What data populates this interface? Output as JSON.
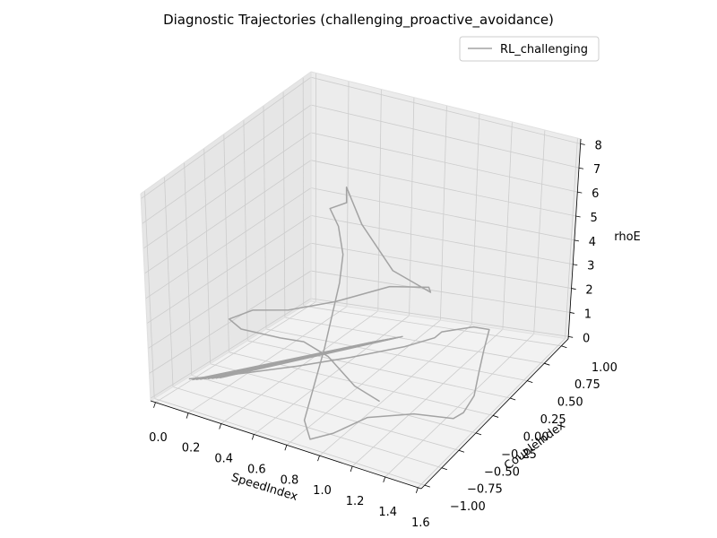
{
  "chart_data": {
    "type": "line3d",
    "title": "Diagnostic Trajectories (challenging_proactive_avoidance)",
    "xlabel": "SpeedIndex",
    "ylabel": "CoupleIndex",
    "zlabel": "rhoE",
    "xlim": [
      -0.03,
      1.62
    ],
    "ylim": [
      -1.05,
      1.1
    ],
    "zlim": [
      -0.1,
      8.2
    ],
    "xticks": [
      "0.0",
      "0.2",
      "0.4",
      "0.6",
      "0.8",
      "1.0",
      "1.2",
      "1.4",
      "1.6"
    ],
    "yticks": [
      "−1.00",
      "−0.75",
      "−0.50",
      "−0.25",
      "0.00",
      "0.25",
      "0.50",
      "0.75",
      "1.00"
    ],
    "zticks": [
      "0",
      "1",
      "2",
      "3",
      "4",
      "5",
      "6",
      "7",
      "8"
    ],
    "grid": true,
    "legend": {
      "position": "top-right",
      "entries": [
        "RL_challenging"
      ]
    },
    "series": [
      {
        "name": "RL_challenging",
        "color": "#a3a3a3",
        "points": [
          [
            0.0,
            -0.6,
            0.0
          ],
          [
            0.2,
            -0.3,
            0.0
          ],
          [
            0.4,
            0.0,
            0.0
          ],
          [
            0.6,
            0.3,
            0.0
          ],
          [
            0.8,
            0.6,
            0.0
          ],
          [
            0.9,
            0.8,
            0.0
          ],
          [
            0.9,
            0.9,
            0.0
          ],
          [
            1.0,
            0.95,
            0.1
          ],
          [
            1.1,
            0.9,
            0.4
          ],
          [
            1.2,
            0.9,
            0.4
          ],
          [
            1.3,
            0.6,
            0.5
          ],
          [
            1.4,
            0.3,
            0.5
          ],
          [
            1.5,
            0.0,
            0.5
          ],
          [
            1.52,
            -0.2,
            0.4
          ],
          [
            1.5,
            -0.3,
            0.4
          ],
          [
            1.3,
            -0.4,
            0.5
          ],
          [
            1.1,
            -0.6,
            0.5
          ],
          [
            1.0,
            -0.85,
            0.3
          ],
          [
            0.9,
            -0.95,
            0.1
          ],
          [
            0.8,
            -0.8,
            0.3
          ],
          [
            0.75,
            -0.4,
            2.1
          ],
          [
            0.8,
            -0.3,
            4.5
          ],
          [
            0.8,
            -0.25,
            5.5
          ],
          [
            0.75,
            -0.2,
            6.4
          ],
          [
            0.7,
            -0.2,
            7.0
          ],
          [
            0.8,
            -0.2,
            7.4
          ],
          [
            0.8,
            -0.2,
            8.0
          ],
          [
            0.8,
            0.0,
            6.1
          ],
          [
            0.9,
            0.2,
            4.0
          ],
          [
            1.0,
            0.5,
            2.6
          ],
          [
            0.9,
            0.7,
            2.2
          ],
          [
            0.7,
            0.6,
            2.2
          ],
          [
            0.5,
            0.3,
            2.0
          ],
          [
            0.3,
            0.1,
            1.8
          ],
          [
            0.1,
            0.05,
            1.6
          ],
          [
            0.0,
            -0.05,
            1.3
          ],
          [
            0.05,
            0.0,
            0.9
          ],
          [
            0.2,
            0.2,
            0.4
          ],
          [
            0.3,
            0.3,
            0.2
          ],
          [
            0.5,
            0.2,
            0.1
          ],
          [
            0.8,
            -0.1,
            0.05
          ],
          [
            1.0,
            -0.2,
            0.0
          ]
        ],
        "bundle": {
          "from": [
            0.02,
            -0.6,
            0.0
          ],
          "to": [
            0.62,
            0.6,
            0.0
          ],
          "count": 8
        }
      }
    ]
  }
}
